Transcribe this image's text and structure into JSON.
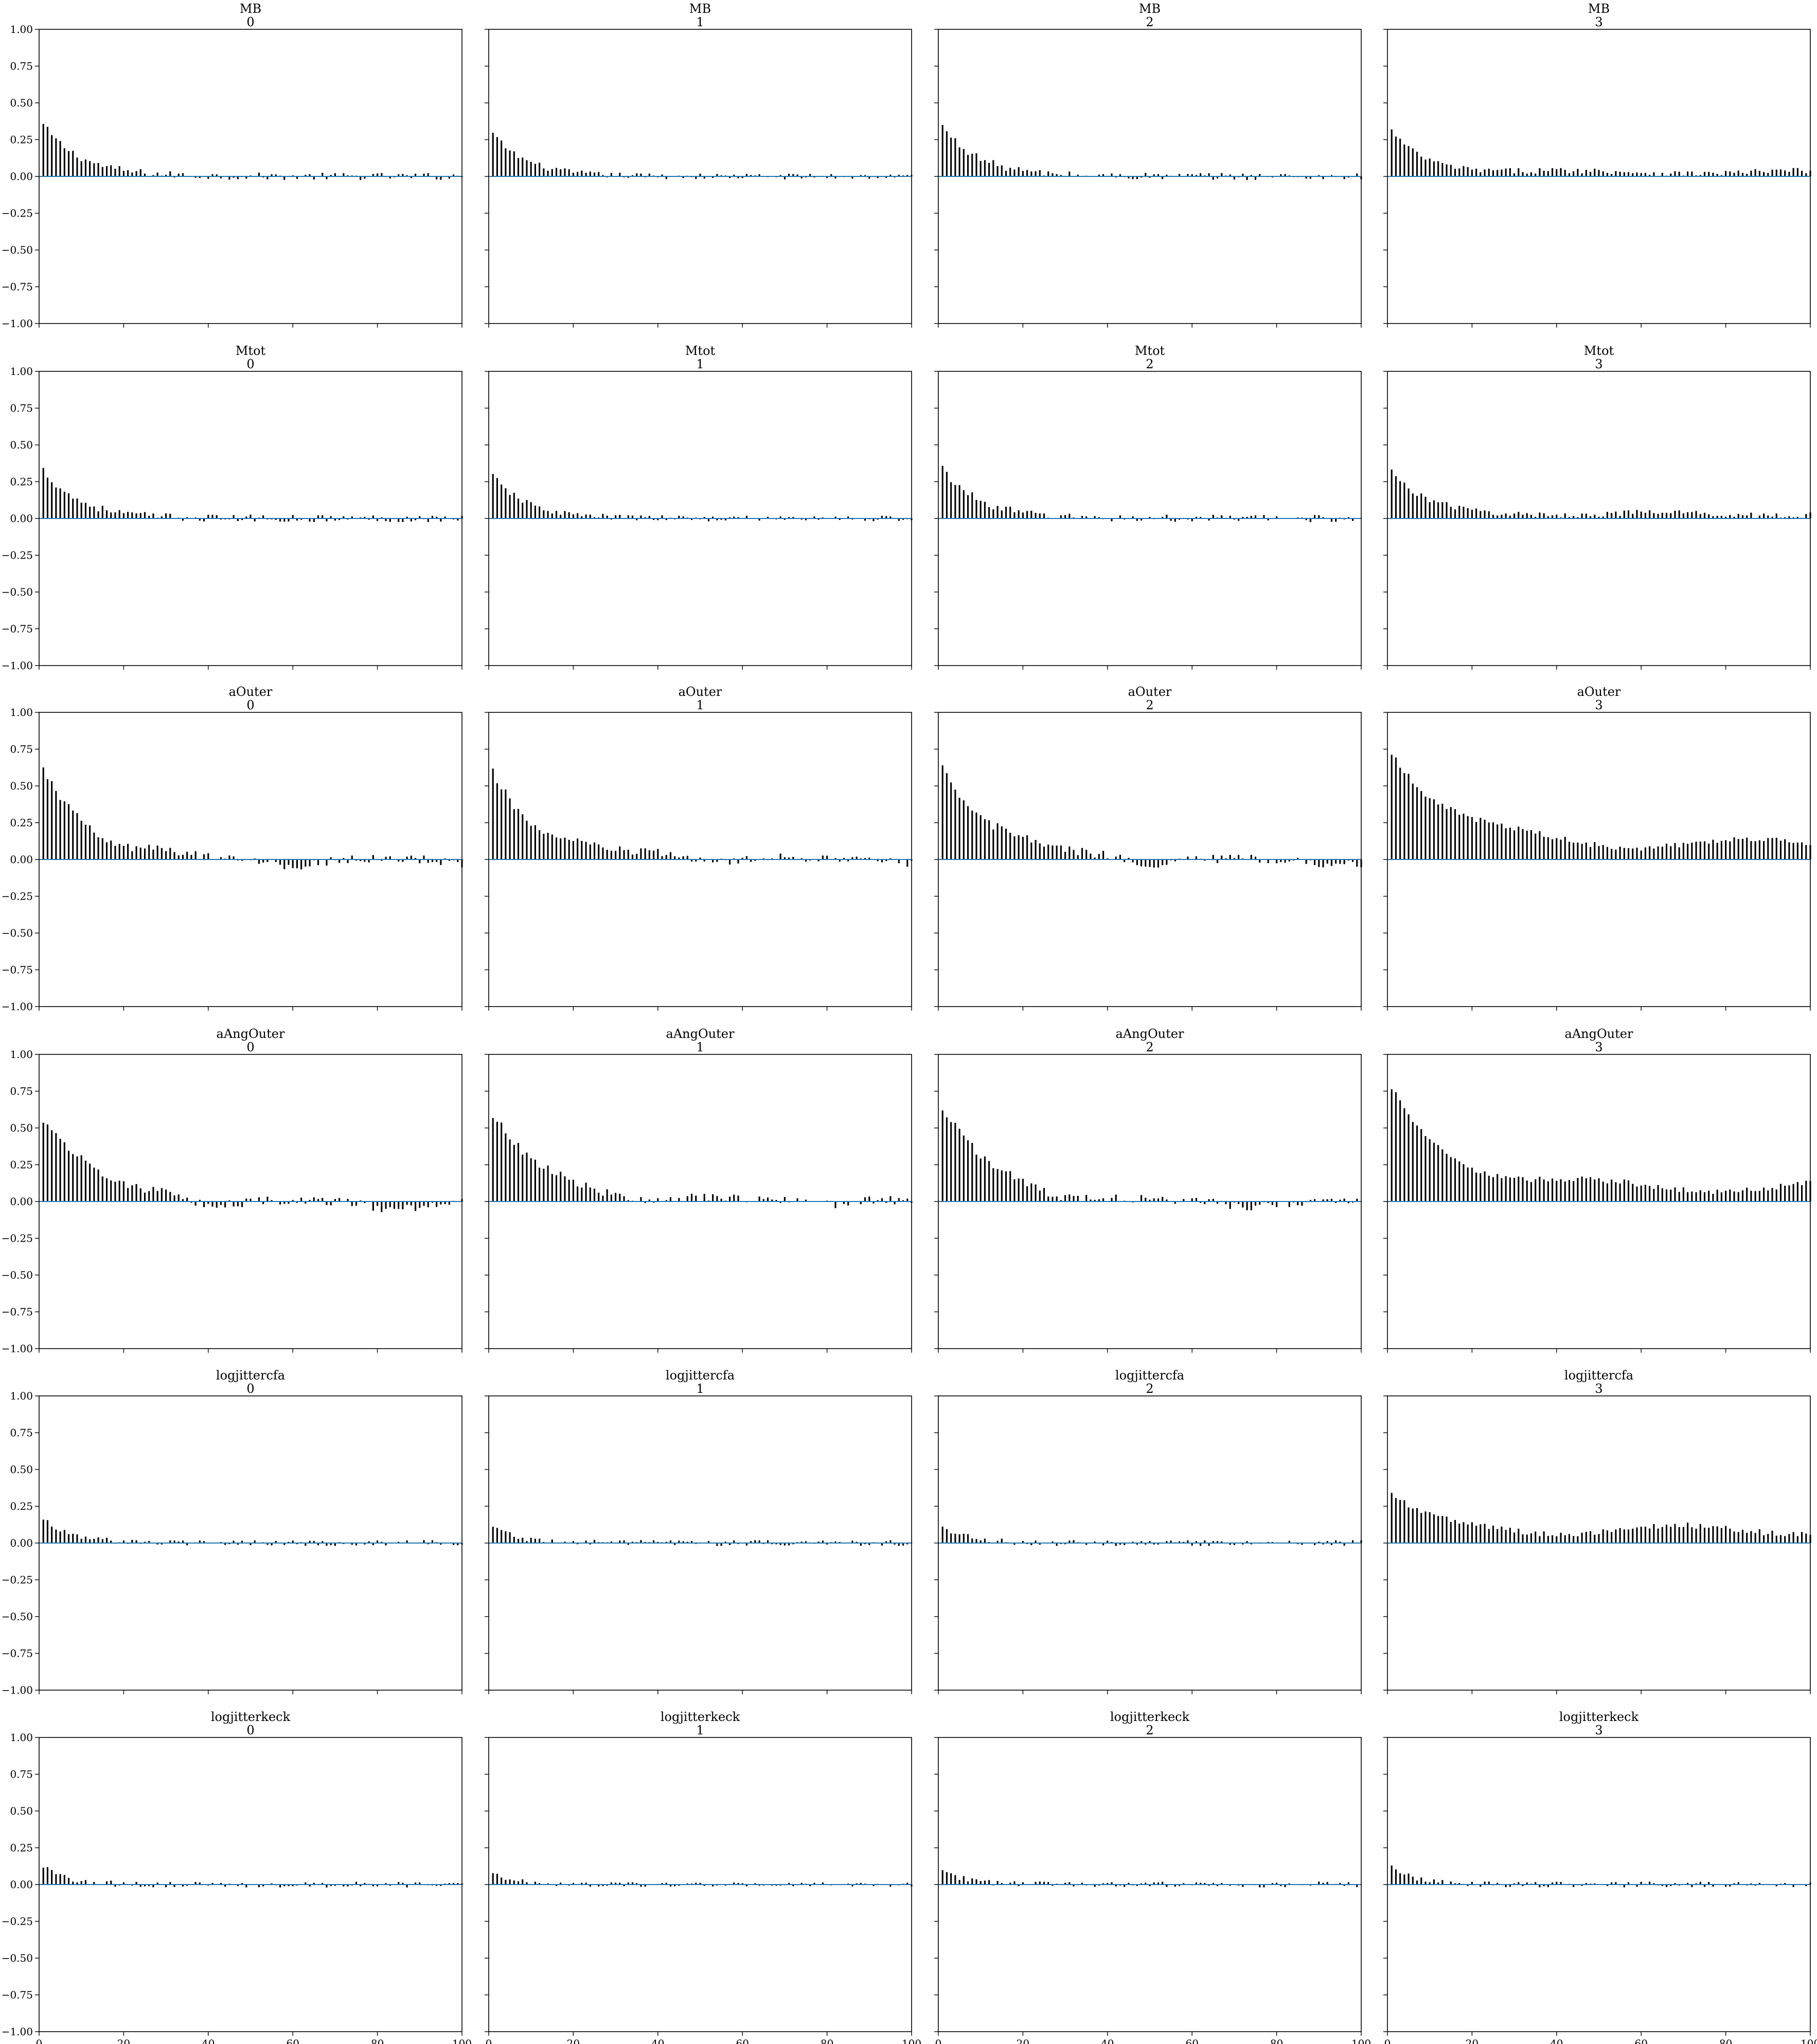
{
  "figure": {
    "background": "#ffffff",
    "bar_color": "#000000",
    "zero_line_color": "#1f77b4",
    "frame_color": "#000000"
  },
  "chart_data": {
    "type": "bar",
    "layout": "grid of autocorrelation plots, 6 rows by 4 columns",
    "xlim": [
      0,
      100
    ],
    "ylim": [
      -1.0,
      1.0
    ],
    "xticks": [
      "0",
      "20",
      "40",
      "60",
      "80",
      "100"
    ],
    "yticks": [
      "1.00",
      "0.75",
      "0.50",
      "0.25",
      "0.00",
      "−0.25",
      "−0.50",
      "−0.75",
      "−1.00"
    ],
    "grid": false,
    "panels": [
      {
        "title": "MB",
        "chain": "0",
        "decay": 0.35,
        "slow": 0.0,
        "noise": 0.025,
        "neg": 0.0
      },
      {
        "title": "MB",
        "chain": "1",
        "decay": 0.29,
        "slow": 0.0,
        "noise": 0.02,
        "neg": 0.0
      },
      {
        "title": "MB",
        "chain": "2",
        "decay": 0.34,
        "slow": 0.0,
        "noise": 0.025,
        "neg": 0.0
      },
      {
        "title": "MB",
        "chain": "3",
        "decay": 0.28,
        "slow": 0.04,
        "noise": 0.02,
        "neg": 0.0
      },
      {
        "title": "Mtot",
        "chain": "0",
        "decay": 0.33,
        "slow": 0.0,
        "noise": 0.025,
        "neg": 0.0
      },
      {
        "title": "Mtot",
        "chain": "1",
        "decay": 0.29,
        "slow": 0.0,
        "noise": 0.02,
        "neg": 0.0
      },
      {
        "title": "Mtot",
        "chain": "2",
        "decay": 0.34,
        "slow": 0.0,
        "noise": 0.025,
        "neg": 0.0
      },
      {
        "title": "Mtot",
        "chain": "3",
        "decay": 0.28,
        "slow": 0.04,
        "noise": 0.02,
        "neg": 0.0
      },
      {
        "title": "aOuter",
        "chain": "0",
        "decay": 0.6,
        "slow": 0.0,
        "noise": 0.03,
        "neg": 0.05
      },
      {
        "title": "aOuter",
        "chain": "1",
        "decay": 0.58,
        "slow": 0.02,
        "noise": 0.03,
        "neg": 0.04
      },
      {
        "title": "aOuter",
        "chain": "2",
        "decay": 0.64,
        "slow": 0.0,
        "noise": 0.03,
        "neg": 0.04
      },
      {
        "title": "aOuter",
        "chain": "3",
        "decay": 0.66,
        "slow": 0.14,
        "noise": 0.02,
        "neg": 0.0
      },
      {
        "title": "aAngOuter",
        "chain": "0",
        "decay": 0.6,
        "slow": 0.0,
        "noise": 0.03,
        "neg": 0.05
      },
      {
        "title": "aAngOuter",
        "chain": "1",
        "decay": 0.58,
        "slow": 0.02,
        "noise": 0.03,
        "neg": 0.04
      },
      {
        "title": "aAngOuter",
        "chain": "2",
        "decay": 0.64,
        "slow": 0.0,
        "noise": 0.03,
        "neg": 0.04
      },
      {
        "title": "aAngOuter",
        "chain": "3",
        "decay": 0.66,
        "slow": 0.13,
        "noise": 0.02,
        "neg": 0.0
      },
      {
        "title": "logjittercfa",
        "chain": "0",
        "decay": 0.17,
        "slow": 0.0,
        "noise": 0.02,
        "neg": 0.0
      },
      {
        "title": "logjittercfa",
        "chain": "1",
        "decay": 0.12,
        "slow": 0.0,
        "noise": 0.02,
        "neg": 0.0
      },
      {
        "title": "logjittercfa",
        "chain": "2",
        "decay": 0.12,
        "slow": 0.0,
        "noise": 0.02,
        "neg": 0.0
      },
      {
        "title": "logjittercfa",
        "chain": "3",
        "decay": 0.25,
        "slow": 0.12,
        "noise": 0.02,
        "neg": 0.0
      },
      {
        "title": "logjitterkeck",
        "chain": "0",
        "decay": 0.12,
        "slow": 0.0,
        "noise": 0.02,
        "neg": 0.0
      },
      {
        "title": "logjitterkeck",
        "chain": "1",
        "decay": 0.08,
        "slow": 0.0,
        "noise": 0.015,
        "neg": 0.0
      },
      {
        "title": "logjitterkeck",
        "chain": "2",
        "decay": 0.1,
        "slow": 0.0,
        "noise": 0.02,
        "neg": 0.0
      },
      {
        "title": "logjitterkeck",
        "chain": "3",
        "decay": 0.13,
        "slow": 0.0,
        "noise": 0.02,
        "neg": 0.0
      }
    ]
  }
}
